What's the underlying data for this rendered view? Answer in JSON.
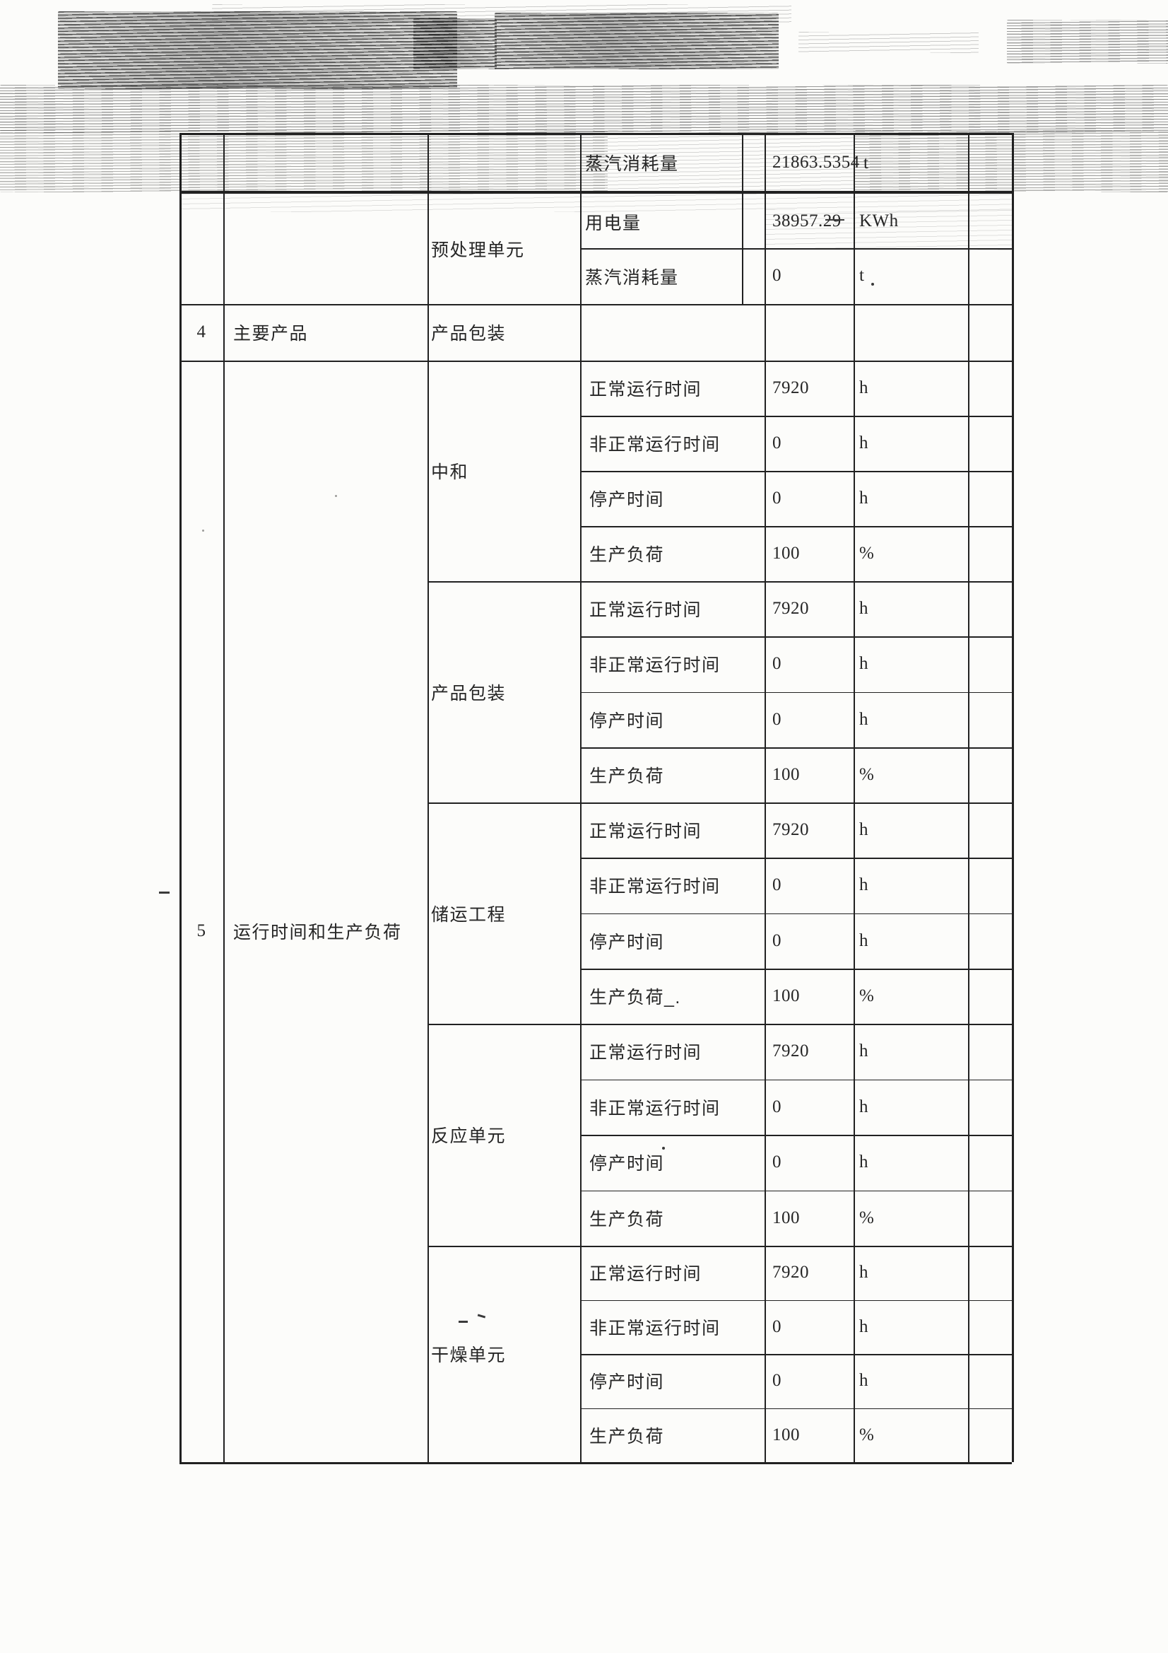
{
  "doc": {
    "carryover": {
      "param": "蒸汽消耗量",
      "value": "21863.5354",
      "unit": "t"
    },
    "pretreatment": {
      "name": "预处理单元",
      "rows": [
        {
          "label": "用电量",
          "value": "38957.29",
          "unit": "KWh"
        },
        {
          "label": "蒸汽消耗量",
          "value": "0",
          "unit": "t"
        }
      ]
    },
    "item4": {
      "no": "4",
      "category": "主要产品",
      "unit": "产品包装"
    },
    "item5": {
      "no": "5",
      "category": "运行时间和生产负荷",
      "units": [
        {
          "name": "中和",
          "rows": [
            {
              "label": "正常运行时间",
              "value": "7920",
              "unit": "h"
            },
            {
              "label": "非正常运行时间",
              "value": "0",
              "unit": "h"
            },
            {
              "label": "停产时间",
              "value": "0",
              "unit": "h"
            },
            {
              "label": "生产负荷",
              "value": "100",
              "unit": "%"
            }
          ]
        },
        {
          "name": "产品包装",
          "rows": [
            {
              "label": "正常运行时间",
              "value": "7920",
              "unit": "h"
            },
            {
              "label": "非正常运行时间",
              "value": "0",
              "unit": "h"
            },
            {
              "label": "停产时间",
              "value": "0",
              "unit": "h"
            },
            {
              "label": "生产负荷",
              "value": "100",
              "unit": "%"
            }
          ]
        },
        {
          "name": "储运工程",
          "rows": [
            {
              "label": "正常运行时间",
              "value": "7920",
              "unit": "h"
            },
            {
              "label": "非正常运行时间",
              "value": "0",
              "unit": "h"
            },
            {
              "label": "停产时间",
              "value": "0",
              "unit": "h"
            },
            {
              "label": "生产负荷_.",
              "value": "100",
              "unit": "%"
            }
          ]
        },
        {
          "name": "反应单元",
          "rows": [
            {
              "label": "正常运行时间",
              "value": "7920",
              "unit": "h"
            },
            {
              "label": "非正常运行时间",
              "value": "0",
              "unit": "h"
            },
            {
              "label": "停产时间",
              "value": "0",
              "unit": "h"
            },
            {
              "label": "生产负荷",
              "value": "100",
              "unit": "%"
            }
          ]
        },
        {
          "name": "干燥单元",
          "rows": [
            {
              "label": "正常运行时间",
              "value": "7920",
              "unit": "h"
            },
            {
              "label": "非正常运行时间",
              "value": "0",
              "unit": "h"
            },
            {
              "label": "停产时间",
              "value": "0",
              "unit": "h"
            },
            {
              "label": "生产负荷",
              "value": "100",
              "unit": "%"
            }
          ]
        }
      ]
    }
  }
}
